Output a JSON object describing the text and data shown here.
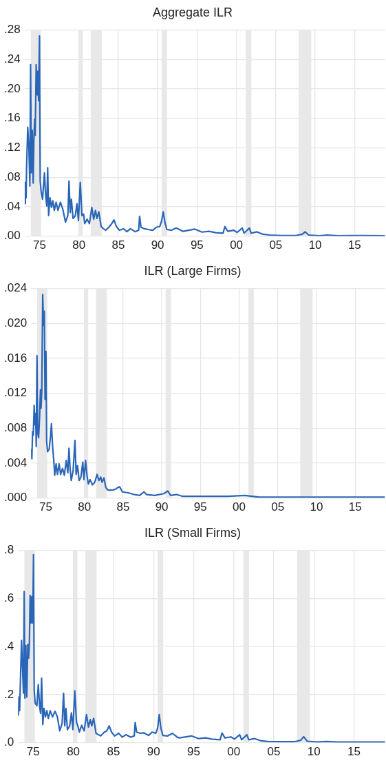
{
  "chart_data": [
    {
      "type": "line",
      "title": "Aggregate ILR",
      "color": "#2a66b8",
      "grid": true,
      "x": [
        1973.15,
        1973.21,
        1973.3,
        1973.36,
        1973.51,
        1973.66,
        1973.78,
        1973.87,
        1973.96,
        1974.08,
        1974.2,
        1974.29,
        1974.38,
        1974.46,
        1974.58,
        1974.7,
        1974.79,
        1974.88,
        1975.0,
        1975.09,
        1975.21,
        1975.39,
        1975.63,
        1975.77,
        1975.92,
        1976.04,
        1976.16,
        1976.34,
        1976.52,
        1976.7,
        1976.88,
        1977.11,
        1977.35,
        1977.65,
        1977.95,
        1978.3,
        1978.6,
        1978.75,
        1978.9,
        1979.05,
        1979.26,
        1979.55,
        1979.76,
        1979.94,
        1980.18,
        1980.39,
        1980.6,
        1980.74,
        1981.04,
        1981.34,
        1981.64,
        1981.88,
        1982.11,
        1982.29,
        1982.53,
        1982.83,
        1983.13,
        1983.42,
        1983.87,
        1984.17,
        1984.46,
        1984.76,
        1985.15,
        1985.65,
        1986.1,
        1986.55,
        1987.14,
        1987.59,
        1987.71,
        1987.89,
        1988.33,
        1988.78,
        1989.38,
        1989.82,
        1990.27,
        1990.51,
        1990.71,
        1990.92,
        1991.16,
        1991.76,
        1992.35,
        1993.24,
        1994.73,
        1995.63,
        1996.5,
        1997.4,
        1998.3,
        1998.54,
        1998.9,
        1999.64,
        2000.09,
        2000.74,
        2000.98,
        2001.64,
        2001.87,
        2002.62,
        2003.36,
        2004.26,
        2005.74,
        2007.53,
        2008.36,
        2008.72,
        2009.17,
        2010.5,
        2011.54,
        2012.9,
        2015.87,
        2018.84
      ],
      "values": [
        0.044,
        0.073,
        0.052,
        0.092,
        0.148,
        0.119,
        0.068,
        0.233,
        0.086,
        0.144,
        0.072,
        0.13,
        0.159,
        0.137,
        0.233,
        0.192,
        0.224,
        0.184,
        0.272,
        0.075,
        0.061,
        0.05,
        0.086,
        0.057,
        0.041,
        0.093,
        0.028,
        0.052,
        0.039,
        0.048,
        0.035,
        0.046,
        0.035,
        0.046,
        0.037,
        0.019,
        0.028,
        0.075,
        0.032,
        0.05,
        0.024,
        0.028,
        0.044,
        0.021,
        0.073,
        0.028,
        0.03,
        0.017,
        0.023,
        0.017,
        0.039,
        0.023,
        0.035,
        0.024,
        0.033,
        0.013,
        0.01,
        0.008,
        0.013,
        0.017,
        0.022,
        0.013,
        0.008,
        0.01,
        0.006,
        0.01,
        0.006,
        0.008,
        0.027,
        0.012,
        0.01,
        0.009,
        0.008,
        0.012,
        0.013,
        0.021,
        0.033,
        0.019,
        0.009,
        0.008,
        0.011,
        0.0065,
        0.0095,
        0.0055,
        0.0065,
        0.0047,
        0.004,
        0.013,
        0.0065,
        0.008,
        0.005,
        0.011,
        0.004,
        0.011,
        0.004,
        0.0058,
        0.0025,
        0.0015,
        0.0008,
        0.0008,
        0.0025,
        0.0058,
        0.0015,
        0.0005,
        0.0015,
        0.0005,
        0.0008,
        0.0005
      ],
      "xlim": [
        1973.1,
        2018.9
      ],
      "xticks": [
        {
          "value": 1975,
          "label": "75"
        },
        {
          "value": 1980,
          "label": "80"
        },
        {
          "value": 1985,
          "label": "85"
        },
        {
          "value": 1990,
          "label": "90"
        },
        {
          "value": 1995,
          "label": "95"
        },
        {
          "value": 2000,
          "label": "00"
        },
        {
          "value": 2005,
          "label": "05"
        },
        {
          "value": 2010,
          "label": "10"
        },
        {
          "value": 2015,
          "label": "15"
        }
      ],
      "ylim": [
        0,
        0.28
      ],
      "yticks": [
        {
          "value": 0,
          "label": ".00"
        },
        {
          "value": 0.04,
          "label": ".04"
        },
        {
          "value": 0.08,
          "label": ".08"
        },
        {
          "value": 0.12,
          "label": ".12"
        },
        {
          "value": 0.16,
          "label": ".16"
        },
        {
          "value": 0.2,
          "label": ".20"
        },
        {
          "value": 0.24,
          "label": ".24"
        },
        {
          "value": 0.28,
          "label": ".28"
        }
      ],
      "bands": [
        {
          "axis": "x",
          "from": 1973.9,
          "to": 1975.2,
          "color": "#e8e8e8"
        },
        {
          "axis": "x",
          "from": 1980.0,
          "to": 1980.5,
          "color": "#e8e8e8"
        },
        {
          "axis": "x",
          "from": 1981.5,
          "to": 1982.9,
          "color": "#e8e8e8"
        },
        {
          "axis": "x",
          "from": 1990.5,
          "to": 1991.2,
          "color": "#e8e8e8"
        },
        {
          "axis": "x",
          "from": 2001.2,
          "to": 2001.9,
          "color": "#e8e8e8"
        },
        {
          "axis": "x",
          "from": 2007.9,
          "to": 2009.5,
          "color": "#e8e8e8"
        }
      ]
    },
    {
      "type": "line",
      "title": "ILR (Large Firms)",
      "color": "#2a66b8",
      "grid": true,
      "x": [
        1973.15,
        1973.21,
        1973.3,
        1973.39,
        1973.51,
        1973.6,
        1973.69,
        1973.78,
        1973.87,
        1973.96,
        1974.08,
        1974.2,
        1974.32,
        1974.4,
        1974.49,
        1974.61,
        1974.73,
        1974.82,
        1974.91,
        1975.03,
        1975.12,
        1975.24,
        1975.45,
        1975.63,
        1975.74,
        1975.89,
        1976.04,
        1976.16,
        1976.34,
        1976.52,
        1976.73,
        1976.93,
        1977.17,
        1977.41,
        1977.65,
        1977.86,
        1978.01,
        1978.15,
        1978.3,
        1978.54,
        1978.78,
        1978.93,
        1979.11,
        1979.32,
        1979.55,
        1979.79,
        1979.94,
        1980.15,
        1980.33,
        1980.51,
        1980.74,
        1981.04,
        1981.34,
        1981.64,
        1981.88,
        1982.11,
        1982.29,
        1982.53,
        1982.77,
        1983.07,
        1983.57,
        1984.02,
        1984.32,
        1984.55,
        1984.91,
        1985.65,
        1986.4,
        1987.14,
        1987.71,
        1988.04,
        1989.08,
        1990.27,
        1990.77,
        1991.16,
        1991.9,
        1992.65,
        1995.0,
        1998.54,
        2000.74,
        2002.62,
        2005.74,
        2008.72,
        2012.9,
        2018.84
      ],
      "values": [
        0.0056,
        0.0045,
        0.0076,
        0.0072,
        0.0106,
        0.0084,
        0.0097,
        0.0059,
        0.0163,
        0.0075,
        0.0069,
        0.0091,
        0.0124,
        0.0103,
        0.0122,
        0.0233,
        0.0198,
        0.0214,
        0.0113,
        0.0168,
        0.0065,
        0.0053,
        0.0056,
        0.0072,
        0.0085,
        0.0059,
        0.0043,
        0.0026,
        0.0039,
        0.0027,
        0.0039,
        0.0027,
        0.0034,
        0.0026,
        0.0043,
        0.0029,
        0.0057,
        0.0034,
        0.002,
        0.0031,
        0.0066,
        0.0027,
        0.0037,
        0.002,
        0.0024,
        0.0041,
        0.0021,
        0.0043,
        0.0026,
        0.0016,
        0.0021,
        0.0015,
        0.0018,
        0.0027,
        0.002,
        0.0024,
        0.0018,
        0.0023,
        0.0012,
        0.0009,
        0.0009,
        0.001,
        0.0012,
        0.0013,
        0.0007,
        0.0006,
        0.0004,
        0.0003,
        0.0007,
        0.0004,
        0.0003,
        0.0005,
        0.0008,
        0.0003,
        0.0004,
        0.0002,
        0.0002,
        0.0002,
        0.0003,
        0.0001,
        0.0001,
        0.0001,
        0.0001,
        0.0001
      ],
      "xlim": [
        1973.1,
        2018.9
      ],
      "xticks": [
        {
          "value": 1975,
          "label": "75"
        },
        {
          "value": 1980,
          "label": "80"
        },
        {
          "value": 1985,
          "label": "85"
        },
        {
          "value": 1990,
          "label": "90"
        },
        {
          "value": 1995,
          "label": "95"
        },
        {
          "value": 2000,
          "label": "00"
        },
        {
          "value": 2005,
          "label": "05"
        },
        {
          "value": 2010,
          "label": "10"
        },
        {
          "value": 2015,
          "label": "15"
        }
      ],
      "ylim": [
        0,
        0.024
      ],
      "yticks": [
        {
          "value": 0,
          "label": ".000"
        },
        {
          "value": 0.004,
          "label": ".004"
        },
        {
          "value": 0.008,
          "label": ".008"
        },
        {
          "value": 0.012,
          "label": ".012"
        },
        {
          "value": 0.016,
          "label": ".016"
        },
        {
          "value": 0.02,
          "label": ".020"
        },
        {
          "value": 0.024,
          "label": ".024"
        }
      ],
      "bands": [
        {
          "axis": "x",
          "from": 1973.9,
          "to": 1975.2,
          "color": "#e8e8e8"
        },
        {
          "axis": "x",
          "from": 1980.0,
          "to": 1980.5,
          "color": "#e8e8e8"
        },
        {
          "axis": "x",
          "from": 1981.5,
          "to": 1982.9,
          "color": "#e8e8e8"
        },
        {
          "axis": "x",
          "from": 1990.5,
          "to": 1991.2,
          "color": "#e8e8e8"
        },
        {
          "axis": "x",
          "from": 2001.2,
          "to": 2001.9,
          "color": "#e8e8e8"
        },
        {
          "axis": "x",
          "from": 2007.9,
          "to": 2009.5,
          "color": "#e8e8e8"
        }
      ]
    },
    {
      "type": "line",
      "title": "ILR (Small Firms)",
      "color": "#2a66b8",
      "grid": true,
      "x": [
        1973.15,
        1973.21,
        1973.3,
        1973.42,
        1973.54,
        1973.66,
        1973.78,
        1973.87,
        1973.96,
        1974.08,
        1974.2,
        1974.32,
        1974.43,
        1974.52,
        1974.61,
        1974.73,
        1974.82,
        1974.94,
        1975.03,
        1975.12,
        1975.24,
        1975.45,
        1975.63,
        1975.8,
        1975.92,
        1976.04,
        1976.19,
        1976.34,
        1976.52,
        1976.7,
        1976.88,
        1977.11,
        1977.41,
        1977.71,
        1978.01,
        1978.3,
        1978.6,
        1978.78,
        1978.93,
        1979.08,
        1979.26,
        1979.55,
        1979.76,
        1979.94,
        1980.18,
        1980.39,
        1980.6,
        1980.74,
        1981.04,
        1981.34,
        1981.64,
        1981.88,
        1982.11,
        1982.29,
        1982.53,
        1982.83,
        1983.13,
        1983.42,
        1983.87,
        1984.17,
        1984.46,
        1984.76,
        1985.15,
        1985.65,
        1986.1,
        1986.55,
        1987.14,
        1987.59,
        1987.71,
        1987.89,
        1988.33,
        1988.78,
        1989.38,
        1989.82,
        1990.27,
        1990.51,
        1990.71,
        1990.92,
        1991.16,
        1991.76,
        1992.35,
        1992.95,
        1993.24,
        1994.73,
        1995.63,
        1996.5,
        1997.4,
        1998.3,
        1998.54,
        1998.9,
        1999.64,
        2000.09,
        2000.74,
        2000.98,
        2001.64,
        2001.87,
        2002.62,
        2003.36,
        2004.26,
        2005.74,
        2007.53,
        2008.36,
        2008.72,
        2009.17,
        2010.5,
        2011.54,
        2012.9,
        2015.87,
        2018.84
      ],
      "values": [
        0.112,
        0.19,
        0.133,
        0.279,
        0.425,
        0.31,
        0.206,
        0.629,
        0.185,
        0.404,
        0.19,
        0.409,
        0.352,
        0.415,
        0.613,
        0.498,
        0.608,
        0.498,
        0.782,
        0.216,
        0.164,
        0.154,
        0.242,
        0.148,
        0.122,
        0.268,
        0.075,
        0.143,
        0.107,
        0.133,
        0.101,
        0.133,
        0.107,
        0.131,
        0.107,
        0.049,
        0.08,
        0.206,
        0.07,
        0.143,
        0.054,
        0.07,
        0.124,
        0.054,
        0.216,
        0.086,
        0.065,
        0.044,
        0.072,
        0.049,
        0.117,
        0.065,
        0.096,
        0.07,
        0.101,
        0.039,
        0.033,
        0.028,
        0.044,
        0.049,
        0.07,
        0.044,
        0.028,
        0.039,
        0.023,
        0.033,
        0.023,
        0.028,
        0.084,
        0.044,
        0.039,
        0.041,
        0.03,
        0.044,
        0.039,
        0.06,
        0.117,
        0.06,
        0.03,
        0.028,
        0.039,
        0.023,
        0.02,
        0.028,
        0.017,
        0.02,
        0.014,
        0.012,
        0.04,
        0.02,
        0.024,
        0.015,
        0.033,
        0.012,
        0.033,
        0.012,
        0.017,
        0.008,
        0.005,
        0.004,
        0.004,
        0.01,
        0.025,
        0.006,
        0.003,
        0.005,
        0.003,
        0.003,
        0.003
      ],
      "xlim": [
        1973.1,
        2018.9
      ],
      "xticks": [
        {
          "value": 1975,
          "label": "75"
        },
        {
          "value": 1980,
          "label": "80"
        },
        {
          "value": 1985,
          "label": "85"
        },
        {
          "value": 1990,
          "label": "90"
        },
        {
          "value": 1995,
          "label": "95"
        },
        {
          "value": 2000,
          "label": "00"
        },
        {
          "value": 2005,
          "label": "05"
        },
        {
          "value": 2010,
          "label": "10"
        },
        {
          "value": 2015,
          "label": "15"
        }
      ],
      "ylim": [
        0,
        0.8
      ],
      "yticks": [
        {
          "value": 0,
          "label": ".0"
        },
        {
          "value": 0.2,
          "label": ".2"
        },
        {
          "value": 0.4,
          "label": ".4"
        },
        {
          "value": 0.6,
          "label": ".6"
        },
        {
          "value": 0.8,
          "label": ".8"
        }
      ],
      "bands": [
        {
          "axis": "x",
          "from": 1973.9,
          "to": 1975.2,
          "color": "#e8e8e8"
        },
        {
          "axis": "x",
          "from": 1980.0,
          "to": 1980.5,
          "color": "#e8e8e8"
        },
        {
          "axis": "x",
          "from": 1981.5,
          "to": 1982.9,
          "color": "#e8e8e8"
        },
        {
          "axis": "x",
          "from": 1990.5,
          "to": 1991.2,
          "color": "#e8e8e8"
        },
        {
          "axis": "x",
          "from": 2001.2,
          "to": 2001.9,
          "color": "#e8e8e8"
        },
        {
          "axis": "x",
          "from": 2007.9,
          "to": 2009.5,
          "color": "#e8e8e8"
        }
      ]
    }
  ]
}
